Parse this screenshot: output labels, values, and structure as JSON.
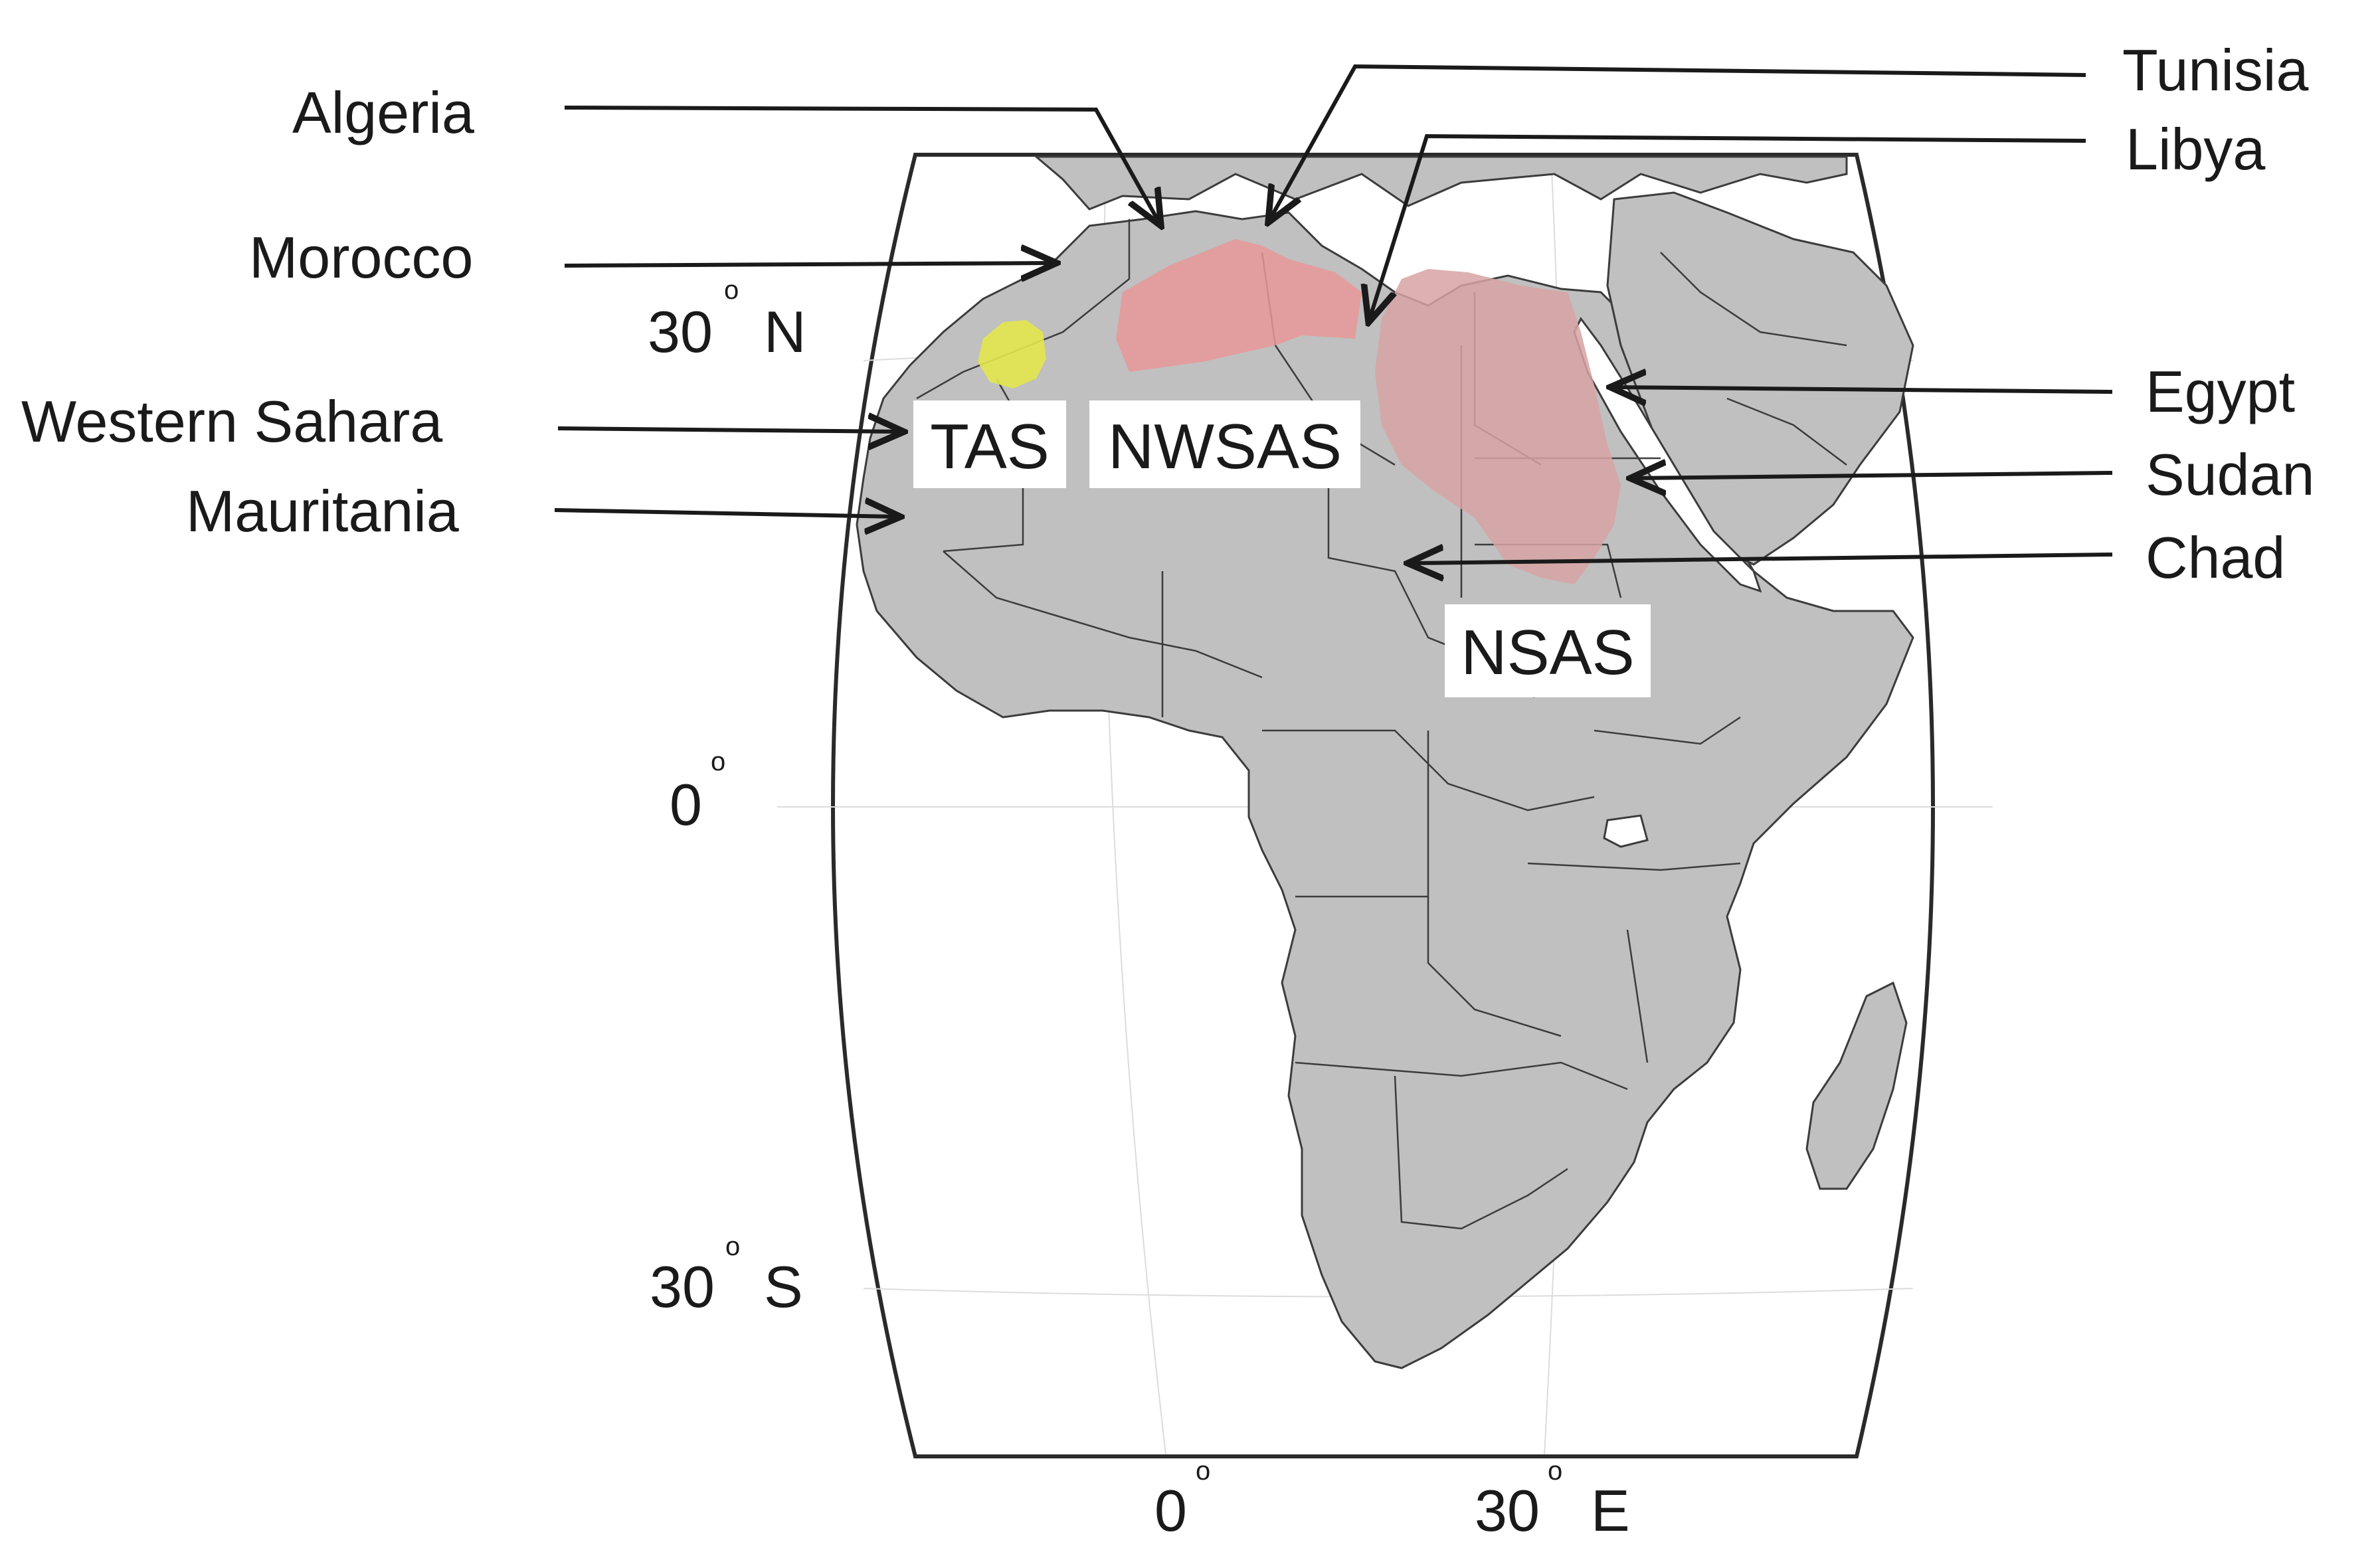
{
  "countries": {
    "algeria": "Algeria",
    "morocco": "Morocco",
    "western_sahara": "Western Sahara",
    "mauritania": "Mauritania",
    "tunisia": "Tunisia",
    "libya": "Libya",
    "egypt": "Egypt",
    "sudan": "Sudan",
    "chad": "Chad"
  },
  "aquifers": {
    "tas": "TAS",
    "nwsas": "NWSAS",
    "nsas": "NSAS"
  },
  "graticule": {
    "lat_30n": "30",
    "lat_30n_dir": "N",
    "lat_0": "0",
    "lat_30s": "30",
    "lat_30s_dir": "S",
    "lon_0": "0",
    "lon_30e": "30",
    "lon_30e_dir": "E",
    "degree_mark": "o"
  },
  "colors": {
    "land": "#c0c0c0",
    "border": "#3c3c3c",
    "frame": "#2a2a2a",
    "tas_fill": "#e3e64c",
    "nwsas_fill": "#e89898",
    "nsas_fill": "#d7a3a3",
    "grid": "#dcdcdc"
  }
}
